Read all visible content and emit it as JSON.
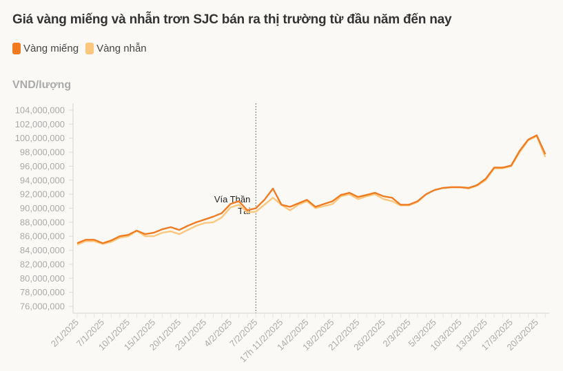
{
  "chart_data": {
    "type": "line",
    "title": "Giá vàng miếng và nhẫn trơn SJC bán ra thị trường từ đầu năm đến nay",
    "ylabel": "VND/lượng",
    "ylim": [
      75000000,
      104500000
    ],
    "yticks": [
      76000000,
      78000000,
      80000000,
      82000000,
      84000000,
      86000000,
      88000000,
      90000000,
      92000000,
      94000000,
      96000000,
      98000000,
      100000000,
      102000000,
      104000000
    ],
    "ytick_labels": [
      "76,000,000",
      "78,000,000",
      "80,000,000",
      "82,000,000",
      "84,000,000",
      "86,000,000",
      "88,000,000",
      "90,000,000",
      "92,000,000",
      "94,000,000",
      "96,000,000",
      "98,000,000",
      "100,000,000",
      "102,000,000",
      "104,000,000"
    ],
    "point_count": 56,
    "xtick_labels": [
      {
        "index": 0,
        "label": "2/1/2025"
      },
      {
        "index": 3,
        "label": "7/1/2025"
      },
      {
        "index": 6,
        "label": "10/1/2025"
      },
      {
        "index": 9,
        "label": "15/1/2025"
      },
      {
        "index": 12,
        "label": "20/1/2025"
      },
      {
        "index": 15,
        "label": "23/1/2025"
      },
      {
        "index": 18,
        "label": "4/2/2025"
      },
      {
        "index": 21,
        "label": "7/2/2025"
      },
      {
        "index": 24,
        "label": "17h 11/2/2025"
      },
      {
        "index": 27,
        "label": "14/2/2025"
      },
      {
        "index": 30,
        "label": "18/2/2025"
      },
      {
        "index": 33,
        "label": "21/2/2025"
      },
      {
        "index": 36,
        "label": "26/2/2025"
      },
      {
        "index": 39,
        "label": "2/3/2025"
      },
      {
        "index": 42,
        "label": "5/3/2025"
      },
      {
        "index": 45,
        "label": "10/3/2025"
      },
      {
        "index": 48,
        "label": "13/3/2025"
      },
      {
        "index": 51,
        "label": "17/3/2025"
      },
      {
        "index": 54,
        "label": "20/3/2025"
      }
    ],
    "annotation": {
      "index": 21,
      "label_line1": "Vía Thần",
      "label_line2": "Tài"
    },
    "series": [
      {
        "name": "Vàng miếng",
        "color": "#f07b21",
        "values": [
          85.0,
          85.5,
          85.5,
          85.0,
          85.4,
          86.0,
          86.2,
          86.8,
          86.3,
          86.5,
          87.0,
          87.3,
          86.9,
          87.5,
          88.0,
          88.4,
          88.8,
          89.3,
          90.6,
          91.0,
          89.7,
          90.0,
          91.2,
          92.8,
          90.5,
          90.2,
          90.7,
          91.2,
          90.2,
          90.6,
          91.0,
          91.9,
          92.2,
          91.6,
          91.9,
          92.2,
          91.7,
          91.5,
          90.5,
          90.5,
          91.0,
          92.0,
          92.6,
          92.9,
          93.0,
          93.0,
          92.9,
          93.3,
          94.2,
          95.8,
          95.8,
          96.1,
          98.2,
          99.8,
          100.4,
          97.7
        ],
        "unit": "million VND"
      },
      {
        "name": "Vàng nhẫn",
        "color": "#fcc77c",
        "values": [
          84.8,
          85.3,
          85.3,
          84.9,
          85.2,
          85.8,
          86.0,
          86.8,
          86.0,
          86.0,
          86.5,
          86.7,
          86.3,
          86.9,
          87.5,
          87.9,
          88.0,
          88.7,
          90.1,
          90.5,
          89.4,
          89.5,
          90.5,
          91.5,
          90.5,
          89.7,
          90.5,
          91.0,
          90.0,
          90.3,
          90.6,
          91.7,
          92.0,
          91.3,
          91.7,
          92.0,
          91.3,
          91.0,
          90.4,
          90.4,
          90.9,
          92.0,
          92.6,
          92.9,
          93.0,
          93.0,
          92.8,
          93.2,
          94.0,
          95.7,
          95.7,
          96.0,
          98.0,
          99.7,
          100.3,
          97.3
        ],
        "unit": "million VND"
      }
    ],
    "grid": false,
    "legend_position": "top-left"
  }
}
